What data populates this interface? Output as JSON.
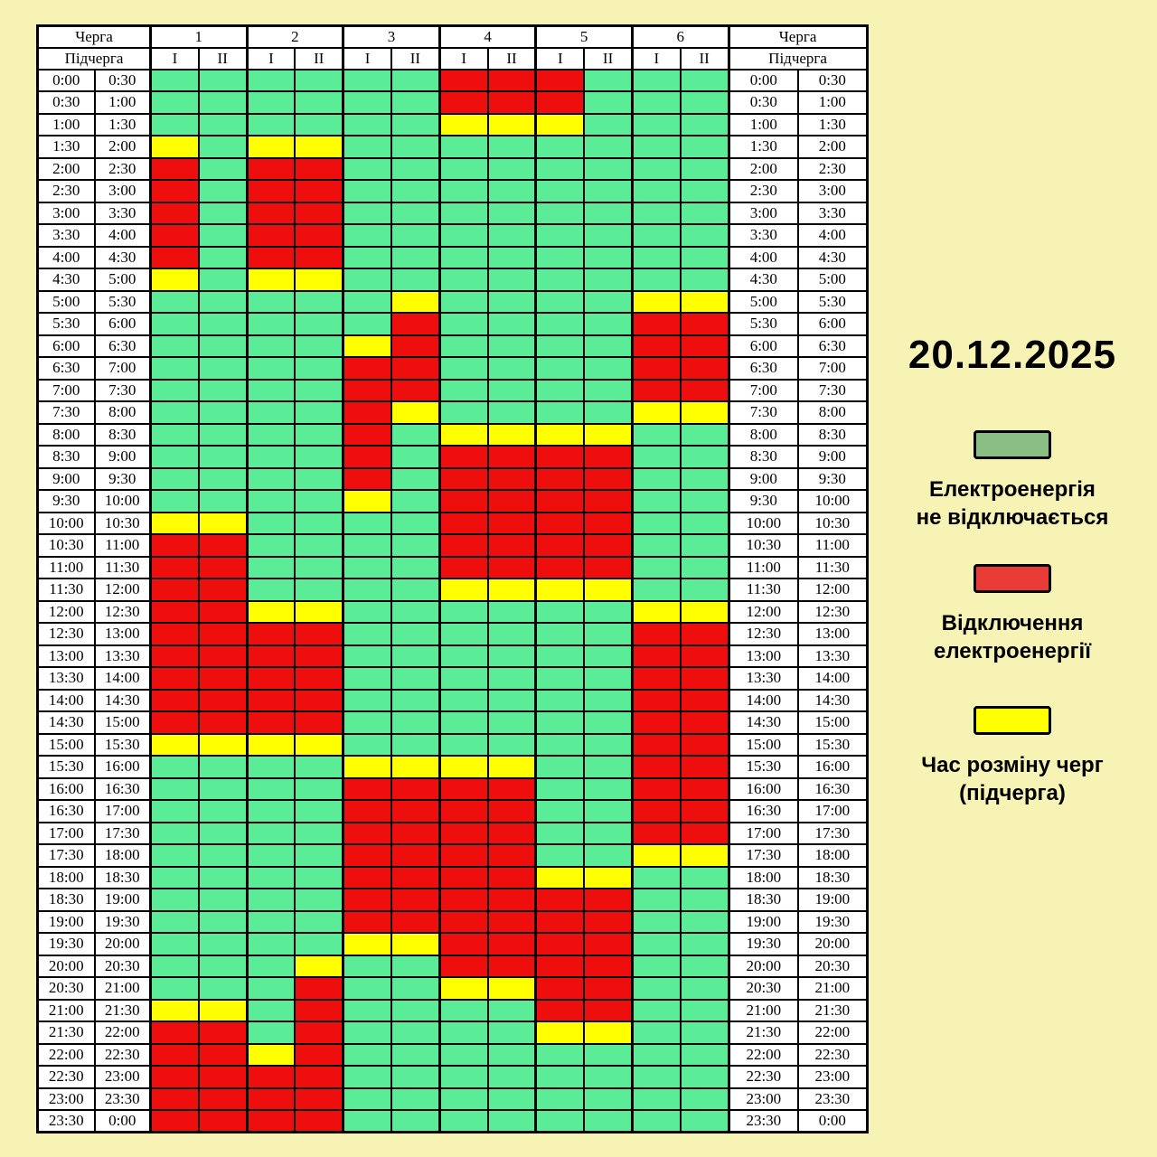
{
  "date_label": "20.12.2025",
  "table": {
    "queue_header": "Черга",
    "subqueue_header": "Підчерга",
    "queues": [
      "1",
      "2",
      "3",
      "4",
      "5",
      "6"
    ],
    "subqueues": [
      "I",
      "II"
    ]
  },
  "colors": {
    "on": "#5BEC98",
    "off": "#EE0E0E",
    "switch": "#FFFF00",
    "legend_on": "#8BBE84",
    "legend_off": "#E93B35",
    "legend_switch": "#FFFF00",
    "page_bg": "#F7F3B4",
    "grid_border": "#000000"
  },
  "legend": [
    {
      "key": "on",
      "swatch": "#8BBE84",
      "lines": [
        "Електроенергія",
        "не відключається"
      ]
    },
    {
      "key": "off",
      "swatch": "#E93B35",
      "lines": [
        "Відключення",
        "електроенергії"
      ]
    },
    {
      "key": "switch",
      "swatch": "#FFFF00",
      "lines": [
        "Час розміну черг",
        "(підчерга)"
      ]
    }
  ],
  "chart_data": {
    "type": "heatmap",
    "title": "20.12.2025",
    "columns": [
      "1-I",
      "1-II",
      "2-I",
      "2-II",
      "3-I",
      "3-II",
      "4-I",
      "4-II",
      "5-I",
      "5-II",
      "6-I",
      "6-II"
    ],
    "cell_codes": {
      "G": "Електроенергія не відключається",
      "R": "Відключення електроенергії",
      "Y": "Час розміну черг (підчерга)"
    },
    "time_intervals": [
      [
        "0:00",
        "0:30"
      ],
      [
        "0:30",
        "1:00"
      ],
      [
        "1:00",
        "1:30"
      ],
      [
        "1:30",
        "2:00"
      ],
      [
        "2:00",
        "2:30"
      ],
      [
        "2:30",
        "3:00"
      ],
      [
        "3:00",
        "3:30"
      ],
      [
        "3:30",
        "4:00"
      ],
      [
        "4:00",
        "4:30"
      ],
      [
        "4:30",
        "5:00"
      ],
      [
        "5:00",
        "5:30"
      ],
      [
        "5:30",
        "6:00"
      ],
      [
        "6:00",
        "6:30"
      ],
      [
        "6:30",
        "7:00"
      ],
      [
        "7:00",
        "7:30"
      ],
      [
        "7:30",
        "8:00"
      ],
      [
        "8:00",
        "8:30"
      ],
      [
        "8:30",
        "9:00"
      ],
      [
        "9:00",
        "9:30"
      ],
      [
        "9:30",
        "10:00"
      ],
      [
        "10:00",
        "10:30"
      ],
      [
        "10:30",
        "11:00"
      ],
      [
        "11:00",
        "11:30"
      ],
      [
        "11:30",
        "12:00"
      ],
      [
        "12:00",
        "12:30"
      ],
      [
        "12:30",
        "13:00"
      ],
      [
        "13:00",
        "13:30"
      ],
      [
        "13:30",
        "14:00"
      ],
      [
        "14:00",
        "14:30"
      ],
      [
        "14:30",
        "15:00"
      ],
      [
        "15:00",
        "15:30"
      ],
      [
        "15:30",
        "16:00"
      ],
      [
        "16:00",
        "16:30"
      ],
      [
        "16:30",
        "17:00"
      ],
      [
        "17:00",
        "17:30"
      ],
      [
        "17:30",
        "18:00"
      ],
      [
        "18:00",
        "18:30"
      ],
      [
        "18:30",
        "19:00"
      ],
      [
        "19:00",
        "19:30"
      ],
      [
        "19:30",
        "20:00"
      ],
      [
        "20:00",
        "20:30"
      ],
      [
        "20:30",
        "21:00"
      ],
      [
        "21:00",
        "21:30"
      ],
      [
        "21:30",
        "22:00"
      ],
      [
        "22:00",
        "22:30"
      ],
      [
        "22:30",
        "23:00"
      ],
      [
        "23:00",
        "23:30"
      ],
      [
        "23:30",
        "0:00"
      ]
    ],
    "grid": [
      "GGGGGGRRRGGG",
      "GGGGGGRRRGGG",
      "GGGGGGYYYGGG",
      "YGYYGGGGGGGG",
      "RGRRGGGGGGGG",
      "RGRRGGGGGGGG",
      "RGRRGGGGGGGG",
      "RGRRGGGGGGGG",
      "RGRRGGGGGGGG",
      "YGYYGGGGGGGG",
      "GGGGGYGGGGYY",
      "GGGGGRGGGGRR",
      "GGGGYRGGGGRR",
      "GGGGRRGGGGRR",
      "GGGGRRGGGGRR",
      "GGGGRYGGGGYY",
      "GGGGRGYYYYGG",
      "GGGGRGRRRRGG",
      "GGGGRGRRRRGG",
      "GGGGYGRRRRGG",
      "YYGGGGRRRRGG",
      "RRGGGGRRRRGG",
      "RRGGGGRRRRGG",
      "RRGGGGYYYYGG",
      "RRYYGGGGGGYY",
      "RRRRGGGGGGRR",
      "RRRRGGGGGGRR",
      "RRRRGGGGGGRR",
      "RRRRGGGGGGRR",
      "RRRRGGGGGGRR",
      "YYYYGGGGGGRR",
      "GGGGYYYYGGRR",
      "GGGGRRRRGGRR",
      "GGGGRRRRGGRR",
      "GGGGRRRRGGRR",
      "GGGGRRRRGGYY",
      "GGGGRRRRYYGG",
      "GGGGRRRRRRGG",
      "GGGGRRRRRRGG",
      "GGGGYYRRRRGG",
      "GGGYGGRRRRGG",
      "GGGRGGYYRRGG",
      "YYGRGGGGRRGG",
      "RRGRGGGGYYGG",
      "RRYRGGGGGGGG",
      "RRRRGGGGGGGG",
      "RRRRGGGGGGGG",
      "RRRRGGGGGGGG"
    ]
  }
}
